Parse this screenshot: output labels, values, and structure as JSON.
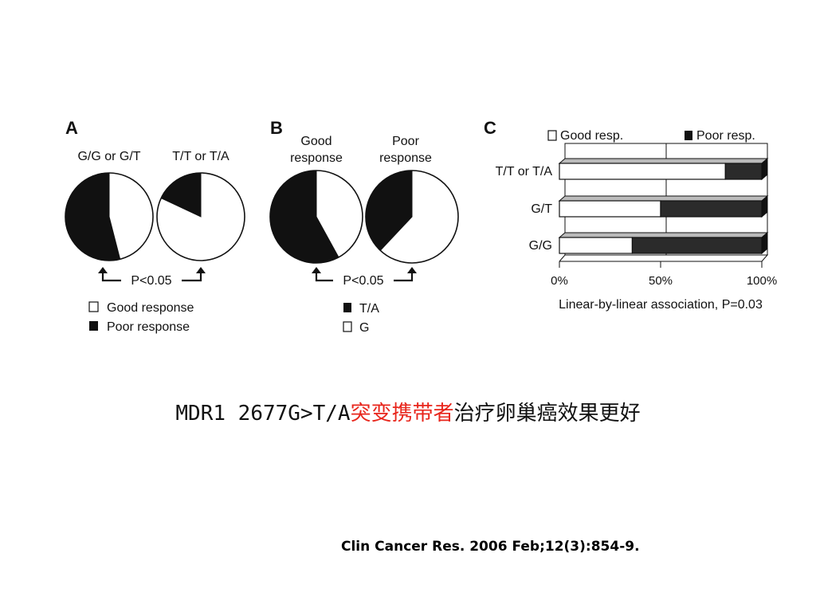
{
  "caption": {
    "prefix": "MDR1 2677G>T/A",
    "highlight": "突变携带者",
    "suffix": "治疗卵巢癌效果更好"
  },
  "citation": "Clin Cancer Res. 2006 Feb;12(3):854-9.",
  "colors": {
    "good": "#ffffff",
    "poor": "#111111",
    "bar_poor": "#2b2b2b",
    "highlight": "#e8261c"
  },
  "chart_data": [
    {
      "panel": "A",
      "type": "pie",
      "pies": [
        {
          "label": "G/G or G/T",
          "slices": [
            {
              "name": "Good response",
              "value": 46
            },
            {
              "name": "Poor response",
              "value": 54
            }
          ]
        },
        {
          "label": "T/T or T/A",
          "slices": [
            {
              "name": "Good response",
              "value": 82
            },
            {
              "name": "Poor response",
              "value": 18
            }
          ]
        }
      ],
      "comparison": "P<0.05",
      "legend": [
        {
          "name": "Good response",
          "color": "#ffffff"
        },
        {
          "name": "Poor response",
          "color": "#111111"
        }
      ]
    },
    {
      "panel": "B",
      "type": "pie",
      "pies": [
        {
          "label_lines": [
            "Good",
            "response"
          ],
          "slices": [
            {
              "name": "G",
              "value": 42
            },
            {
              "name": "T/A",
              "value": 58
            }
          ]
        },
        {
          "label_lines": [
            "Poor",
            "response"
          ],
          "slices": [
            {
              "name": "G",
              "value": 62
            },
            {
              "name": "T/A",
              "value": 38
            }
          ]
        }
      ],
      "comparison": "P<0.05",
      "legend": [
        {
          "name": "T/A",
          "color": "#111111"
        },
        {
          "name": "G",
          "color": "#ffffff"
        }
      ]
    },
    {
      "panel": "C",
      "type": "bar",
      "orientation": "horizontal",
      "stacked": true,
      "categories": [
        "T/T or T/A",
        "G/T",
        "G/G"
      ],
      "series": [
        {
          "name": "Good resp.",
          "values": [
            82,
            50,
            36
          ]
        },
        {
          "name": "Poor resp.",
          "values": [
            18,
            50,
            64
          ]
        }
      ],
      "xticks": [
        "0%",
        "50%",
        "100%"
      ],
      "xlim": [
        0,
        100
      ],
      "xlabel": "Linear-by-linear association, P=0.03",
      "legend_placement": "top"
    }
  ]
}
